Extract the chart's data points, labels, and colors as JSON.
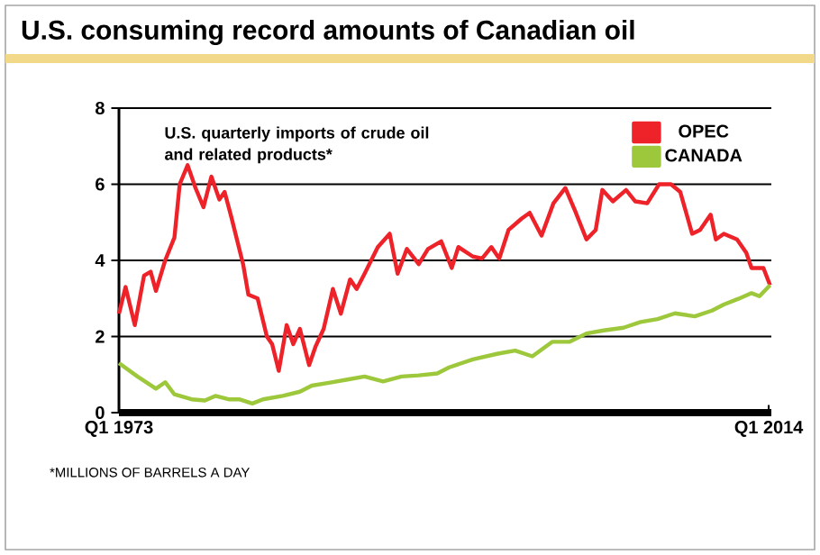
{
  "chart_data": {
    "type": "line",
    "title": "U.S. consuming record amounts of Canadian oil",
    "subtitle": "U.S. quarterly imports of crude oil and related products*",
    "annotations": [
      "*MILLIONS OF BARRELS A DAY"
    ],
    "xlim": [
      "1973-01",
      "2014-03"
    ],
    "xticks": [
      {
        "value": "1973-01",
        "label": "Q1 1973"
      },
      {
        "value": "2014-01",
        "label": "Q1 2014"
      }
    ],
    "ylim": [
      0,
      8
    ],
    "yticks": [
      0,
      2,
      4,
      6,
      8
    ],
    "grid": "y",
    "legend": "top right",
    "marker": "none",
    "line_style": "solid",
    "series": [
      {
        "name": "OPEC",
        "color": "#ee2229",
        "x": [
          "1973-01",
          "1973-06",
          "1974-01",
          "1974-08",
          "1975-01",
          "1975-05",
          "1975-12",
          "1976-07",
          "1976-11",
          "1977-05",
          "1977-11",
          "1978-05",
          "1978-11",
          "1979-05",
          "1979-09",
          "1980-02",
          "1980-11",
          "1981-03",
          "1981-10",
          "1982-05",
          "1982-09",
          "1983-02",
          "1983-08",
          "1984-01",
          "1984-06",
          "1985-01",
          "1985-06",
          "1985-12",
          "1986-07",
          "1987-01",
          "1987-08",
          "1988-01",
          "1988-07",
          "1989-05",
          "1990-02",
          "1990-08",
          "1991-03",
          "1991-12",
          "1992-07",
          "1993-05",
          "1994-01",
          "1994-06",
          "1995-05",
          "1995-12",
          "1996-07",
          "1997-01",
          "1997-08",
          "1998-06",
          "1998-12",
          "1999-09",
          "2000-06",
          "2001-03",
          "2001-11",
          "2002-07",
          "2003-02",
          "2003-07",
          "2004-03",
          "2005-01",
          "2005-08",
          "2006-05",
          "2007-02",
          "2007-11",
          "2008-06",
          "2009-03",
          "2009-09",
          "2010-05",
          "2010-09",
          "2011-03",
          "2012-01",
          "2012-08",
          "2012-12",
          "2013-09",
          "2014-02"
        ],
        "values": [
          2.6,
          3.3,
          2.3,
          3.6,
          3.7,
          3.2,
          4.0,
          4.6,
          6.0,
          6.5,
          5.9,
          5.4,
          6.2,
          5.6,
          5.8,
          5.15,
          3.9,
          3.1,
          3.0,
          2.0,
          1.8,
          1.1,
          2.3,
          1.8,
          2.2,
          1.25,
          1.75,
          2.2,
          3.25,
          2.6,
          3.5,
          3.25,
          3.65,
          4.35,
          4.7,
          3.65,
          4.3,
          3.9,
          4.3,
          4.5,
          3.8,
          4.35,
          4.1,
          4.05,
          4.35,
          4.05,
          4.8,
          5.1,
          5.25,
          4.65,
          5.5,
          5.9,
          5.25,
          4.55,
          4.8,
          5.85,
          5.55,
          5.85,
          5.55,
          5.5,
          6.0,
          6.0,
          5.8,
          4.7,
          4.8,
          5.2,
          4.55,
          4.7,
          4.55,
          4.2,
          3.8,
          3.8,
          3.35
        ]
      },
      {
        "name": "CANADA",
        "color": "#9dc83b",
        "x": [
          "1973-01",
          "1974-03",
          "1975-05",
          "1975-12",
          "1976-07",
          "1977-08",
          "1978-06",
          "1979-02",
          "1979-12",
          "1980-08",
          "1981-06",
          "1982-02",
          "1983-05",
          "1984-06",
          "1985-03",
          "1986-05",
          "1987-06",
          "1988-07",
          "1989-09",
          "1990-11",
          "1991-12",
          "1993-02",
          "1993-11",
          "1995-05",
          "1996-12",
          "1998-01",
          "1999-02",
          "2000-05",
          "2001-06",
          "2002-07",
          "2003-08",
          "2004-11",
          "2005-12",
          "2007-01",
          "2008-02",
          "2009-05",
          "2010-06",
          "2011-03",
          "2012-02",
          "2012-12",
          "2013-06",
          "2014-02"
        ],
        "values": [
          1.3,
          0.95,
          0.63,
          0.8,
          0.48,
          0.35,
          0.32,
          0.44,
          0.35,
          0.35,
          0.24,
          0.35,
          0.44,
          0.55,
          0.71,
          0.79,
          0.87,
          0.95,
          0.82,
          0.95,
          0.98,
          1.03,
          1.19,
          1.4,
          1.55,
          1.63,
          1.48,
          1.86,
          1.86,
          2.08,
          2.16,
          2.23,
          2.38,
          2.46,
          2.61,
          2.53,
          2.68,
          2.84,
          2.99,
          3.14,
          3.06,
          3.35
        ]
      }
    ]
  }
}
